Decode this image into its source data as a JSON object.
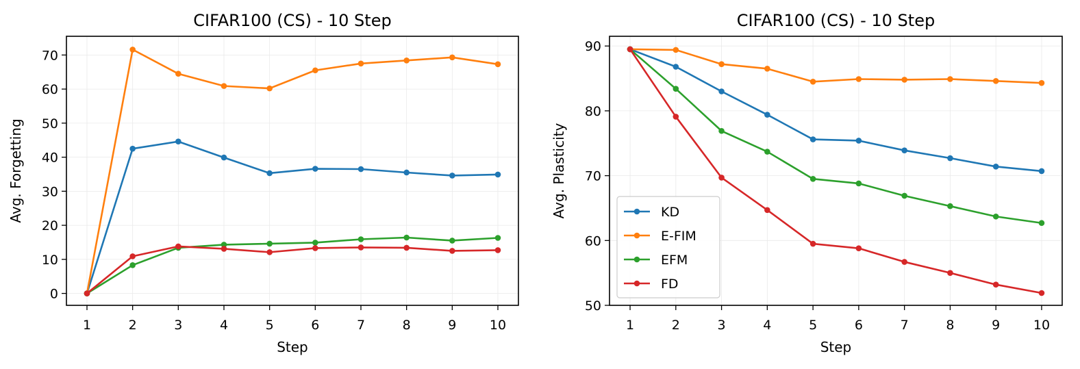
{
  "chart_data": [
    {
      "type": "line",
      "title": "CIFAR100 (CS) - 10 Step",
      "xlabel": "Step",
      "ylabel": "Avg. Forgetting",
      "x": [
        1,
        2,
        3,
        4,
        5,
        6,
        7,
        8,
        9,
        10
      ],
      "xticks": [
        "1",
        "2",
        "3",
        "4",
        "5",
        "6",
        "7",
        "8",
        "9",
        "10"
      ],
      "yticks": [
        "0",
        "10",
        "20",
        "30",
        "40",
        "50",
        "60",
        "70"
      ],
      "ylim": [
        -3.5,
        75.5
      ],
      "grid": true,
      "legend": "none",
      "series": [
        {
          "name": "KD",
          "color": "#1f77b4",
          "values": [
            0,
            42.5,
            44.6,
            39.9,
            35.3,
            36.6,
            36.5,
            35.5,
            34.6,
            34.9
          ]
        },
        {
          "name": "E-FIM",
          "color": "#ff7f0e",
          "values": [
            0,
            71.6,
            64.5,
            60.9,
            60.2,
            65.5,
            67.5,
            68.4,
            69.3,
            67.3
          ]
        },
        {
          "name": "EFM",
          "color": "#2ca02c",
          "values": [
            0,
            8.3,
            13.4,
            14.3,
            14.6,
            14.9,
            15.9,
            16.4,
            15.5,
            16.3
          ]
        },
        {
          "name": "FD",
          "color": "#d62728",
          "values": [
            0,
            10.9,
            13.8,
            13.1,
            12.1,
            13.3,
            13.5,
            13.4,
            12.5,
            12.7
          ]
        }
      ]
    },
    {
      "type": "line",
      "title": "CIFAR100 (CS) - 10 Step",
      "xlabel": "Step",
      "ylabel": "Avg. Plasticity",
      "x": [
        1,
        2,
        3,
        4,
        5,
        6,
        7,
        8,
        9,
        10
      ],
      "xticks": [
        "1",
        "2",
        "3",
        "4",
        "5",
        "6",
        "7",
        "8",
        "9",
        "10"
      ],
      "yticks": [
        "50",
        "60",
        "70",
        "80",
        "90"
      ],
      "ylim": [
        50,
        91.5
      ],
      "grid": true,
      "legend": "lower-left",
      "series": [
        {
          "name": "KD",
          "color": "#1f77b4",
          "values": [
            89.5,
            86.8,
            83.0,
            79.4,
            75.6,
            75.4,
            73.9,
            72.7,
            71.4,
            70.7
          ]
        },
        {
          "name": "E-FIM",
          "color": "#ff7f0e",
          "values": [
            89.5,
            89.4,
            87.2,
            86.5,
            84.5,
            84.9,
            84.8,
            84.9,
            84.6,
            84.3
          ]
        },
        {
          "name": "EFM",
          "color": "#2ca02c",
          "values": [
            89.5,
            83.4,
            76.9,
            73.7,
            69.5,
            68.8,
            66.9,
            65.3,
            63.7,
            62.7
          ]
        },
        {
          "name": "FD",
          "color": "#d62728",
          "values": [
            89.5,
            79.1,
            69.7,
            64.7,
            59.5,
            58.8,
            56.7,
            55.0,
            53.2,
            51.9
          ]
        }
      ]
    }
  ]
}
